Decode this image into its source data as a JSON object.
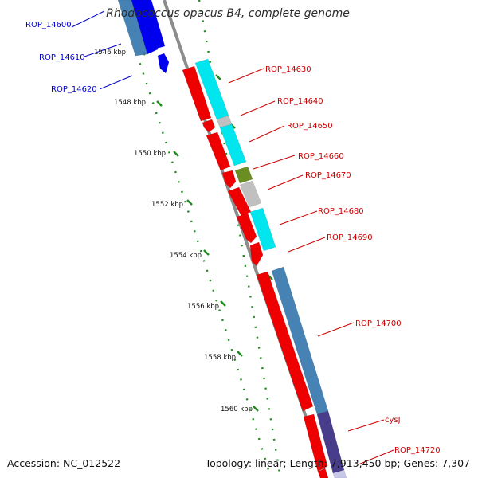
{
  "title": "Rhodococcus opacus B4, complete genome",
  "footer": {
    "accession": "Accession: NC_012522",
    "summary": "Topology: linear; Length: 7,913,450 bp; Genes: 7,307"
  },
  "colors": {
    "backbone": "#8c8c8c",
    "scale_ticks": "#1e8c1e",
    "label_blue": "#0000cc",
    "label_red": "#cc0000",
    "forward_gene": "#4682b4",
    "cds_red": "#ee0000",
    "cyan": "#00e5ee",
    "grey": "#c0c0c0",
    "olive": "#6b8e23",
    "blue": "#0000ee",
    "purple": "#483d8b"
  },
  "scale": {
    "ticks": [
      {
        "label": "1546 kbp"
      },
      {
        "label": "1548 kbp"
      },
      {
        "label": "1550 kbp"
      },
      {
        "label": "1552 kbp"
      },
      {
        "label": "1554 kbp"
      },
      {
        "label": "1556 kbp"
      },
      {
        "label": "1558 kbp"
      },
      {
        "label": "1560 kbp"
      }
    ]
  },
  "genes": [
    {
      "name": "ROP_14600",
      "strand": "left",
      "color": "blue"
    },
    {
      "name": "ROP_14610",
      "strand": "left",
      "color": "blue"
    },
    {
      "name": "ROP_14620",
      "strand": "left",
      "color": "blue"
    },
    {
      "name": "ROP_14630",
      "strand": "right",
      "color": "red"
    },
    {
      "name": "ROP_14640",
      "strand": "right",
      "color": "red"
    },
    {
      "name": "ROP_14650",
      "strand": "right",
      "color": "red"
    },
    {
      "name": "ROP_14660",
      "strand": "right",
      "color": "red"
    },
    {
      "name": "ROP_14670",
      "strand": "right",
      "color": "red"
    },
    {
      "name": "ROP_14680",
      "strand": "right",
      "color": "red"
    },
    {
      "name": "ROP_14690",
      "strand": "right",
      "color": "red"
    },
    {
      "name": "ROP_14700",
      "strand": "right",
      "color": "red"
    },
    {
      "name": "cysJ",
      "strand": "right",
      "color": "red"
    },
    {
      "name": "ROP_14720",
      "strand": "right",
      "color": "red"
    }
  ]
}
